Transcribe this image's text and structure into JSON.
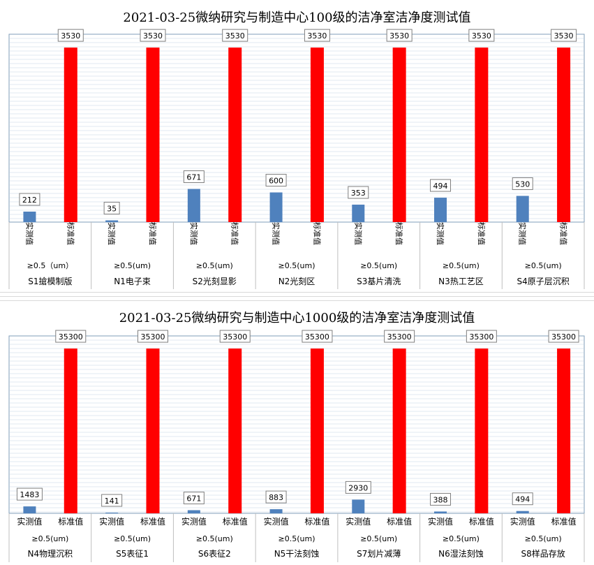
{
  "chart_data": [
    {
      "type": "bar",
      "title": "2021-03-25微纳研究与制造中心100级的洁净室洁净度测试值",
      "groups": [
        "S1搶模制版",
        "N1电子束",
        "S2光刻显影",
        "N2光刻区",
        "S3基片清洗",
        "N3热工艺区",
        "S4原子层沉积"
      ],
      "subgroups": [
        "≥0.5（um）",
        "≥0.5(um)",
        "≥0.5(um)",
        "≥0.5(um)",
        "≥0.5(um)",
        "≥0.5(um)",
        "≥0.5(um)"
      ],
      "bar_labels": [
        "实测值",
        "标准值"
      ],
      "series": [
        {
          "name": "实测值",
          "values": [
            212,
            35,
            671,
            600,
            353,
            494,
            530
          ],
          "color": "#4f81bd"
        },
        {
          "name": "标准值",
          "values": [
            3530,
            3530,
            3530,
            3530,
            3530,
            3530,
            3530
          ],
          "color": "#ff0000"
        }
      ],
      "ylim": [
        0,
        3800
      ],
      "label_orientation": "vertical",
      "grid": true
    },
    {
      "type": "bar",
      "title": "2021-03-25微纳研究与制造中心1000级的洁净室洁净度测试值",
      "groups": [
        "N4物理沉积",
        "S5表征1",
        "S6表征2",
        "N5干法刻蚀",
        "S7划片减薄",
        "N6湿法刻蚀",
        "S8样品存放"
      ],
      "subgroups": [
        "≥0.5(um)",
        "≥0.5(um)",
        "≥0.5(um)",
        "≥0.5(um)",
        "≥0.5(um)",
        "≥0.5(um)",
        "≥0.5(um)"
      ],
      "bar_labels": [
        "实测值",
        "标准值"
      ],
      "series": [
        {
          "name": "实测值",
          "values": [
            1483,
            141,
            671,
            883,
            2930,
            388,
            494
          ],
          "color": "#4f81bd"
        },
        {
          "name": "标准值",
          "values": [
            35300,
            35300,
            35300,
            35300,
            35300,
            35300,
            35300
          ],
          "color": "#ff0000"
        }
      ],
      "ylim": [
        0,
        38000
      ],
      "label_orientation": "horizontal",
      "grid": true
    }
  ]
}
